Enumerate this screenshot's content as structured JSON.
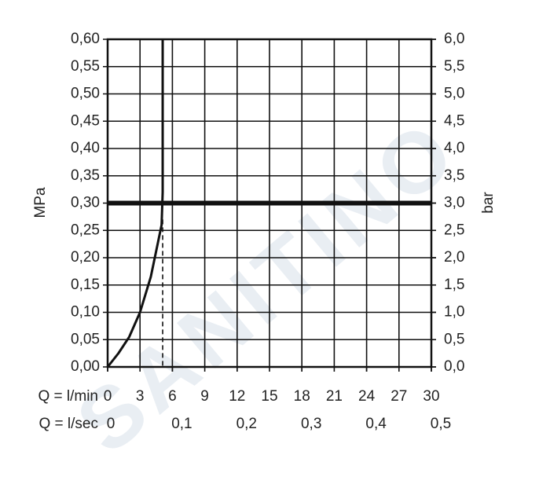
{
  "chart_data": {
    "type": "line",
    "watermark": "SANITINO",
    "x_label": "Q = l/min",
    "x2_label": "Q = l/sec",
    "y_label": "MPa",
    "y2_label": "bar",
    "xlim": [
      0,
      30
    ],
    "xticks": [
      0,
      3,
      6,
      9,
      12,
      15,
      18,
      21,
      24,
      27,
      30
    ],
    "x2lim": [
      0,
      0.5
    ],
    "x2ticks": [
      0,
      {
        "value": 0.1,
        "label": "0,1"
      },
      {
        "value": 0.2,
        "label": "0,2"
      },
      {
        "value": 0.3,
        "label": "0,3"
      },
      {
        "value": 0.4,
        "label": "0,4"
      },
      {
        "value": 0.5,
        "label": "0,5"
      }
    ],
    "ylim": [
      0,
      0.6
    ],
    "yticks": [
      {
        "value": 0,
        "label": "0,00"
      },
      {
        "value": 0.05,
        "label": "0,05"
      },
      {
        "value": 0.1,
        "label": "0,10"
      },
      {
        "value": 0.15,
        "label": "0,15"
      },
      {
        "value": 0.2,
        "label": "0,20"
      },
      {
        "value": 0.25,
        "label": "0,25"
      },
      {
        "value": 0.3,
        "label": "0,30"
      },
      {
        "value": 0.35,
        "label": "0,35"
      },
      {
        "value": 0.4,
        "label": "0,40"
      },
      {
        "value": 0.45,
        "label": "0,45"
      },
      {
        "value": 0.5,
        "label": "0,50"
      },
      {
        "value": 0.55,
        "label": "0,55"
      },
      {
        "value": 0.6,
        "label": "0,60"
      }
    ],
    "y2lim": [
      0,
      6
    ],
    "y2ticks": [
      {
        "value": 0,
        "label": "0,0"
      },
      {
        "value": 0.5,
        "label": "0,5"
      },
      {
        "value": 1,
        "label": "1,0"
      },
      {
        "value": 1.5,
        "label": "1,5"
      },
      {
        "value": 2,
        "label": "2,0"
      },
      {
        "value": 2.5,
        "label": "2,5"
      },
      {
        "value": 3,
        "label": "3,0"
      },
      {
        "value": 3.5,
        "label": "3,5"
      },
      {
        "value": 4,
        "label": "4,0"
      },
      {
        "value": 4.5,
        "label": "4,5"
      },
      {
        "value": 5,
        "label": "5,0"
      },
      {
        "value": 5.5,
        "label": "5,5"
      },
      {
        "value": 6,
        "label": "6,0"
      }
    ],
    "grid": true,
    "reference_line": 0.3,
    "operating_point": {
      "x": 5.1,
      "y": 0.27
    },
    "color": "#111111",
    "x": [
      0,
      1,
      2,
      3,
      4,
      5,
      5.1,
      5.1
    ],
    "series": [
      {
        "color": "#111111",
        "values": [
          0,
          0.025,
          0.055,
          0.1,
          0.165,
          0.26,
          0.32,
          0.6
        ]
      }
    ]
  }
}
